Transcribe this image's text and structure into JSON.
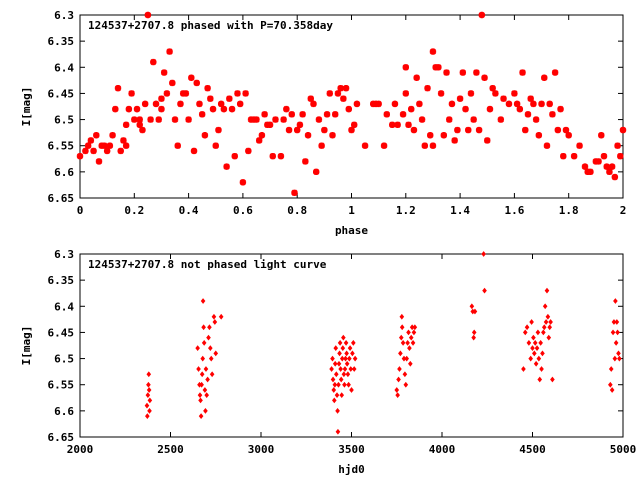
{
  "chart_data": [
    {
      "type": "scatter",
      "title": "124537+2707.8 phased with P=70.358day",
      "xlabel": "phase",
      "ylabel": "I[mag]",
      "xlim": [
        0,
        2
      ],
      "ylim": [
        6.3,
        6.65
      ],
      "y_inverted": true,
      "grid": false,
      "marker": "star",
      "color": "#ff0000",
      "x_ticks": [
        "0",
        "0.2",
        "0.4",
        "0.6",
        "0.8",
        "1",
        "1.2",
        "1.4",
        "1.6",
        "1.8",
        "2"
      ],
      "y_ticks": [
        "6.3",
        "6.35",
        "6.4",
        "6.45",
        "6.5",
        "6.55",
        "6.6",
        "6.65"
      ],
      "points": [
        [
          0.0,
          6.57
        ],
        [
          0.02,
          6.56
        ],
        [
          0.03,
          6.55
        ],
        [
          0.04,
          6.54
        ],
        [
          0.05,
          6.56
        ],
        [
          0.06,
          6.53
        ],
        [
          0.07,
          6.58
        ],
        [
          0.08,
          6.55
        ],
        [
          0.09,
          6.55
        ],
        [
          0.1,
          6.56
        ],
        [
          0.11,
          6.55
        ],
        [
          0.12,
          6.53
        ],
        [
          0.13,
          6.48
        ],
        [
          0.14,
          6.44
        ],
        [
          0.15,
          6.56
        ],
        [
          0.16,
          6.54
        ],
        [
          0.17,
          6.55
        ],
        [
          0.17,
          6.51
        ],
        [
          0.18,
          6.48
        ],
        [
          0.19,
          6.45
        ],
        [
          0.2,
          6.5
        ],
        [
          0.21,
          6.48
        ],
        [
          0.22,
          6.51
        ],
        [
          0.22,
          6.5
        ],
        [
          0.23,
          6.52
        ],
        [
          0.24,
          6.47
        ],
        [
          0.25,
          6.3
        ],
        [
          0.26,
          6.5
        ],
        [
          0.27,
          6.39
        ],
        [
          0.28,
          6.47
        ],
        [
          0.29,
          6.5
        ],
        [
          0.3,
          6.46
        ],
        [
          0.3,
          6.48
        ],
        [
          0.31,
          6.41
        ],
        [
          0.32,
          6.45
        ],
        [
          0.33,
          6.37
        ],
        [
          0.34,
          6.43
        ],
        [
          0.35,
          6.5
        ],
        [
          0.36,
          6.55
        ],
        [
          0.37,
          6.47
        ],
        [
          0.38,
          6.45
        ],
        [
          0.39,
          6.45
        ],
        [
          0.4,
          6.5
        ],
        [
          0.41,
          6.42
        ],
        [
          0.42,
          6.56
        ],
        [
          0.43,
          6.43
        ],
        [
          0.44,
          6.47
        ],
        [
          0.45,
          6.49
        ],
        [
          0.46,
          6.53
        ],
        [
          0.47,
          6.44
        ],
        [
          0.48,
          6.46
        ],
        [
          0.49,
          6.48
        ],
        [
          0.5,
          6.55
        ],
        [
          0.51,
          6.52
        ],
        [
          0.52,
          6.47
        ],
        [
          0.53,
          6.48
        ],
        [
          0.54,
          6.59
        ],
        [
          0.55,
          6.46
        ],
        [
          0.56,
          6.48
        ],
        [
          0.57,
          6.57
        ],
        [
          0.58,
          6.45
        ],
        [
          0.59,
          6.47
        ],
        [
          0.6,
          6.62
        ],
        [
          0.61,
          6.45
        ],
        [
          0.62,
          6.56
        ],
        [
          0.63,
          6.5
        ],
        [
          0.64,
          6.5
        ],
        [
          0.65,
          6.5
        ],
        [
          0.66,
          6.54
        ],
        [
          0.67,
          6.53
        ],
        [
          0.68,
          6.49
        ],
        [
          0.69,
          6.51
        ],
        [
          0.7,
          6.51
        ],
        [
          0.71,
          6.57
        ],
        [
          0.72,
          6.5
        ],
        [
          0.74,
          6.57
        ],
        [
          0.75,
          6.5
        ],
        [
          0.76,
          6.48
        ],
        [
          0.77,
          6.52
        ],
        [
          0.78,
          6.49
        ],
        [
          0.79,
          6.64
        ],
        [
          0.8,
          6.52
        ],
        [
          0.81,
          6.51
        ],
        [
          0.82,
          6.49
        ],
        [
          0.83,
          6.58
        ],
        [
          0.84,
          6.53
        ],
        [
          0.85,
          6.46
        ],
        [
          0.86,
          6.47
        ],
        [
          0.87,
          6.6
        ],
        [
          0.88,
          6.5
        ],
        [
          0.89,
          6.55
        ],
        [
          0.9,
          6.52
        ],
        [
          0.91,
          6.49
        ],
        [
          0.92,
          6.45
        ],
        [
          0.93,
          6.53
        ],
        [
          0.94,
          6.49
        ],
        [
          0.95,
          6.45
        ],
        [
          0.96,
          6.44
        ],
        [
          0.97,
          6.46
        ],
        [
          0.98,
          6.44
        ],
        [
          0.99,
          6.48
        ],
        [
          1.0,
          6.52
        ],
        [
          1.01,
          6.51
        ],
        [
          1.02,
          6.47
        ],
        [
          1.05,
          6.55
        ],
        [
          1.08,
          6.47
        ],
        [
          1.09,
          6.47
        ],
        [
          1.1,
          6.47
        ],
        [
          1.12,
          6.55
        ],
        [
          1.13,
          6.49
        ],
        [
          1.15,
          6.51
        ],
        [
          1.16,
          6.47
        ],
        [
          1.17,
          6.51
        ],
        [
          1.19,
          6.49
        ],
        [
          1.2,
          6.45
        ],
        [
          1.2,
          6.4
        ],
        [
          1.21,
          6.51
        ],
        [
          1.22,
          6.48
        ],
        [
          1.23,
          6.52
        ],
        [
          1.24,
          6.42
        ],
        [
          1.25,
          6.47
        ],
        [
          1.26,
          6.5
        ],
        [
          1.27,
          6.55
        ],
        [
          1.28,
          6.44
        ],
        [
          1.29,
          6.53
        ],
        [
          1.3,
          6.55
        ],
        [
          1.3,
          6.37
        ],
        [
          1.31,
          6.4
        ],
        [
          1.32,
          6.4
        ],
        [
          1.33,
          6.45
        ],
        [
          1.34,
          6.53
        ],
        [
          1.35,
          6.41
        ],
        [
          1.36,
          6.5
        ],
        [
          1.37,
          6.47
        ],
        [
          1.38,
          6.54
        ],
        [
          1.39,
          6.52
        ],
        [
          1.4,
          6.46
        ],
        [
          1.41,
          6.41
        ],
        [
          1.42,
          6.48
        ],
        [
          1.43,
          6.52
        ],
        [
          1.44,
          6.45
        ],
        [
          1.45,
          6.5
        ],
        [
          1.46,
          6.41
        ],
        [
          1.47,
          6.52
        ],
        [
          1.48,
          6.3
        ],
        [
          1.49,
          6.42
        ],
        [
          1.5,
          6.54
        ],
        [
          1.51,
          6.48
        ],
        [
          1.52,
          6.44
        ],
        [
          1.53,
          6.45
        ],
        [
          1.55,
          6.5
        ],
        [
          1.56,
          6.46
        ],
        [
          1.58,
          6.47
        ],
        [
          1.6,
          6.45
        ],
        [
          1.61,
          6.47
        ],
        [
          1.62,
          6.48
        ],
        [
          1.63,
          6.41
        ],
        [
          1.64,
          6.52
        ],
        [
          1.65,
          6.49
        ],
        [
          1.66,
          6.46
        ],
        [
          1.67,
          6.47
        ],
        [
          1.68,
          6.5
        ],
        [
          1.69,
          6.53
        ],
        [
          1.7,
          6.47
        ],
        [
          1.71,
          6.42
        ],
        [
          1.72,
          6.55
        ],
        [
          1.73,
          6.47
        ],
        [
          1.74,
          6.49
        ],
        [
          1.75,
          6.41
        ],
        [
          1.76,
          6.52
        ],
        [
          1.77,
          6.48
        ],
        [
          1.78,
          6.57
        ],
        [
          1.79,
          6.52
        ],
        [
          1.8,
          6.53
        ],
        [
          1.82,
          6.57
        ],
        [
          1.84,
          6.55
        ],
        [
          1.86,
          6.59
        ],
        [
          1.87,
          6.6
        ],
        [
          1.88,
          6.6
        ],
        [
          1.9,
          6.58
        ],
        [
          1.91,
          6.58
        ],
        [
          1.92,
          6.53
        ],
        [
          1.93,
          6.57
        ],
        [
          1.94,
          6.59
        ],
        [
          1.95,
          6.6
        ],
        [
          1.96,
          6.59
        ],
        [
          1.97,
          6.61
        ],
        [
          1.98,
          6.55
        ],
        [
          1.99,
          6.57
        ],
        [
          2.0,
          6.52
        ]
      ]
    },
    {
      "type": "scatter",
      "title": "124537+2707.8 not phased light curve",
      "xlabel": "hjd0",
      "ylabel": "I[mag]",
      "xlim": [
        2000,
        5000
      ],
      "ylim": [
        6.3,
        6.65
      ],
      "y_inverted": true,
      "grid": false,
      "marker": "diamond",
      "color": "#ff0000",
      "x_ticks": [
        "2000",
        "2500",
        "3000",
        "3500",
        "4000",
        "4500",
        "5000"
      ],
      "y_ticks": [
        "6.3",
        "6.35",
        "6.4",
        "6.45",
        "6.5",
        "6.55",
        "6.6",
        "6.65"
      ],
      "points": [
        [
          2370,
          6.59
        ],
        [
          2372,
          6.61
        ],
        [
          2375,
          6.57
        ],
        [
          2378,
          6.55
        ],
        [
          2380,
          6.53
        ],
        [
          2382,
          6.56
        ],
        [
          2384,
          6.6
        ],
        [
          2386,
          6.58
        ],
        [
          2650,
          6.48
        ],
        [
          2655,
          6.52
        ],
        [
          2660,
          6.55
        ],
        [
          2663,
          6.57
        ],
        [
          2666,
          6.58
        ],
        [
          2669,
          6.61
        ],
        [
          2672,
          6.55
        ],
        [
          2675,
          6.53
        ],
        [
          2678,
          6.5
        ],
        [
          2680,
          6.39
        ],
        [
          2683,
          6.44
        ],
        [
          2686,
          6.47
        ],
        [
          2690,
          6.56
        ],
        [
          2693,
          6.6
        ],
        [
          2696,
          6.52
        ],
        [
          2700,
          6.57
        ],
        [
          2705,
          6.54
        ],
        [
          2710,
          6.46
        ],
        [
          2715,
          6.44
        ],
        [
          2720,
          6.48
        ],
        [
          2725,
          6.5
        ],
        [
          2730,
          6.53
        ],
        [
          2740,
          6.42
        ],
        [
          2745,
          6.43
        ],
        [
          2750,
          6.49
        ],
        [
          2780,
          6.42
        ],
        [
          3390,
          6.52
        ],
        [
          3395,
          6.5
        ],
        [
          3398,
          6.54
        ],
        [
          3402,
          6.56
        ],
        [
          3405,
          6.58
        ],
        [
          3408,
          6.55
        ],
        [
          3410,
          6.51
        ],
        [
          3413,
          6.48
        ],
        [
          3416,
          6.53
        ],
        [
          3420,
          6.57
        ],
        [
          3423,
          6.6
        ],
        [
          3425,
          6.64
        ],
        [
          3428,
          6.55
        ],
        [
          3431,
          6.51
        ],
        [
          3434,
          6.49
        ],
        [
          3437,
          6.47
        ],
        [
          3440,
          6.52
        ],
        [
          3443,
          6.54
        ],
        [
          3446,
          6.57
        ],
        [
          3449,
          6.5
        ],
        [
          3452,
          6.48
        ],
        [
          3455,
          6.46
        ],
        [
          3458,
          6.53
        ],
        [
          3461,
          6.55
        ],
        [
          3464,
          6.52
        ],
        [
          3467,
          6.5
        ],
        [
          3470,
          6.47
        ],
        [
          3473,
          6.49
        ],
        [
          3476,
          6.51
        ],
        [
          3480,
          6.53
        ],
        [
          3484,
          6.55
        ],
        [
          3488,
          6.5
        ],
        [
          3492,
          6.48
        ],
        [
          3496,
          6.52
        ],
        [
          3500,
          6.56
        ],
        [
          3505,
          6.49
        ],
        [
          3510,
          6.47
        ],
        [
          3515,
          6.52
        ],
        [
          3520,
          6.5
        ],
        [
          3750,
          6.56
        ],
        [
          3755,
          6.57
        ],
        [
          3760,
          6.54
        ],
        [
          3765,
          6.52
        ],
        [
          3770,
          6.49
        ],
        [
          3775,
          6.46
        ],
        [
          3778,
          6.42
        ],
        [
          3780,
          6.44
        ],
        [
          3785,
          6.47
        ],
        [
          3790,
          6.5
        ],
        [
          3795,
          6.53
        ],
        [
          3800,
          6.55
        ],
        [
          3805,
          6.5
        ],
        [
          3810,
          6.47
        ],
        [
          3815,
          6.45
        ],
        [
          3820,
          6.48
        ],
        [
          3825,
          6.51
        ],
        [
          3830,
          6.46
        ],
        [
          3835,
          6.44
        ],
        [
          3840,
          6.47
        ],
        [
          3845,
          6.45
        ],
        [
          3850,
          6.44
        ],
        [
          4165,
          6.4
        ],
        [
          4170,
          6.41
        ],
        [
          4175,
          6.46
        ],
        [
          4178,
          6.45
        ],
        [
          4182,
          6.41
        ],
        [
          4230,
          6.3
        ],
        [
          4235,
          6.37
        ],
        [
          4450,
          6.52
        ],
        [
          4460,
          6.45
        ],
        [
          4470,
          6.44
        ],
        [
          4480,
          6.47
        ],
        [
          4490,
          6.5
        ],
        [
          4495,
          6.43
        ],
        [
          4500,
          6.48
        ],
        [
          4505,
          6.46
        ],
        [
          4510,
          6.49
        ],
        [
          4515,
          6.47
        ],
        [
          4520,
          6.51
        ],
        [
          4525,
          6.48
        ],
        [
          4530,
          6.45
        ],
        [
          4535,
          6.5
        ],
        [
          4540,
          6.54
        ],
        [
          4545,
          6.47
        ],
        [
          4550,
          6.52
        ],
        [
          4555,
          6.49
        ],
        [
          4560,
          6.45
        ],
        [
          4565,
          6.44
        ],
        [
          4570,
          6.4
        ],
        [
          4575,
          6.43
        ],
        [
          4580,
          6.37
        ],
        [
          4585,
          6.42
        ],
        [
          4590,
          6.46
        ],
        [
          4595,
          6.44
        ],
        [
          4600,
          6.43
        ],
        [
          4610,
          6.54
        ],
        [
          4930,
          6.55
        ],
        [
          4935,
          6.52
        ],
        [
          4940,
          6.56
        ],
        [
          4945,
          6.45
        ],
        [
          4950,
          6.43
        ],
        [
          4955,
          6.5
        ],
        [
          4958,
          6.39
        ],
        [
          4962,
          6.47
        ],
        [
          4966,
          6.43
        ],
        [
          4970,
          6.45
        ],
        [
          4975,
          6.49
        ],
        [
          4980,
          6.5
        ]
      ]
    }
  ]
}
